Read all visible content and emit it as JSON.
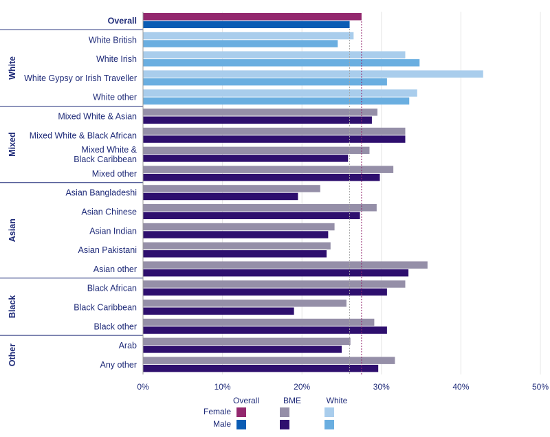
{
  "chart_data": {
    "type": "bar",
    "orientation": "horizontal",
    "xlim": [
      0,
      50
    ],
    "x_ticks": [
      "0%",
      "10%",
      "20%",
      "30%",
      "40%",
      "50%"
    ],
    "reference_lines": {
      "female_overall": 27.5,
      "male_overall": 26.0
    },
    "categories": [
      {
        "label": "Overall",
        "group": "",
        "type": "Overall",
        "female": 27.5,
        "male": 26.0
      },
      {
        "label": "White British",
        "group": "White",
        "type": "White",
        "female": 26.5,
        "male": 24.5
      },
      {
        "label": "White Irish",
        "group": "White",
        "type": "White",
        "female": 33.0,
        "male": 34.8
      },
      {
        "label": "White Gypsy or Irish Traveller",
        "group": "White",
        "type": "White",
        "female": 42.8,
        "male": 30.7
      },
      {
        "label": "White other",
        "group": "White",
        "type": "White",
        "female": 34.5,
        "male": 33.5
      },
      {
        "label": "Mixed White & Asian",
        "group": "Mixed",
        "type": "BME",
        "female": 29.5,
        "male": 28.8
      },
      {
        "label": "Mixed White & Black African",
        "group": "Mixed",
        "type": "BME",
        "female": 33.0,
        "male": 33.0
      },
      {
        "label": "Mixed White &\nBlack Caribbean",
        "group": "Mixed",
        "type": "BME",
        "female": 28.5,
        "male": 25.8
      },
      {
        "label": "Mixed other",
        "group": "Mixed",
        "type": "BME",
        "female": 31.5,
        "male": 29.8
      },
      {
        "label": "Asian Bangladeshi",
        "group": "Asian",
        "type": "BME",
        "female": 22.3,
        "male": 19.5
      },
      {
        "label": "Asian Chinese",
        "group": "Asian",
        "type": "BME",
        "female": 29.4,
        "male": 27.3
      },
      {
        "label": "Asian Indian",
        "group": "Asian",
        "type": "BME",
        "female": 24.1,
        "male": 23.3
      },
      {
        "label": "Asian Pakistani",
        "group": "Asian",
        "type": "BME",
        "female": 23.6,
        "male": 23.1
      },
      {
        "label": "Asian other",
        "group": "Asian",
        "type": "BME",
        "female": 35.8,
        "male": 33.4
      },
      {
        "label": "Black African",
        "group": "Black",
        "type": "BME",
        "female": 33.0,
        "male": 30.7
      },
      {
        "label": "Black Caribbean",
        "group": "Black",
        "type": "BME",
        "female": 25.6,
        "male": 19.0
      },
      {
        "label": "Black other",
        "group": "Black",
        "type": "BME",
        "female": 29.1,
        "male": 30.7
      },
      {
        "label": "Arab",
        "group": "Other",
        "type": "BME",
        "female": 26.1,
        "male": 25.0
      },
      {
        "label": "Any other",
        "group": "Other",
        "type": "BME",
        "female": 31.7,
        "male": 29.6
      }
    ],
    "groups": [
      {
        "label": "White",
        "start": 1,
        "end": 4
      },
      {
        "label": "Mixed",
        "start": 5,
        "end": 8
      },
      {
        "label": "Asian",
        "start": 9,
        "end": 13
      },
      {
        "label": "Black",
        "start": 14,
        "end": 16
      },
      {
        "label": "Other",
        "start": 17,
        "end": 18
      }
    ],
    "legend": {
      "columns": [
        "Overall",
        "BME",
        "White"
      ],
      "rows": [
        "Female",
        "Male"
      ]
    },
    "colors": {
      "Overall": {
        "female": "#93286e",
        "male": "#0a5cb4"
      },
      "BME": {
        "female": "#958fa8",
        "male": "#2e0f6e"
      },
      "White": {
        "female": "#a9cdec",
        "male": "#6aaee0"
      },
      "text": "#1e2a78",
      "separator": "#1e2a78",
      "grid": "#e5e5e5"
    }
  }
}
